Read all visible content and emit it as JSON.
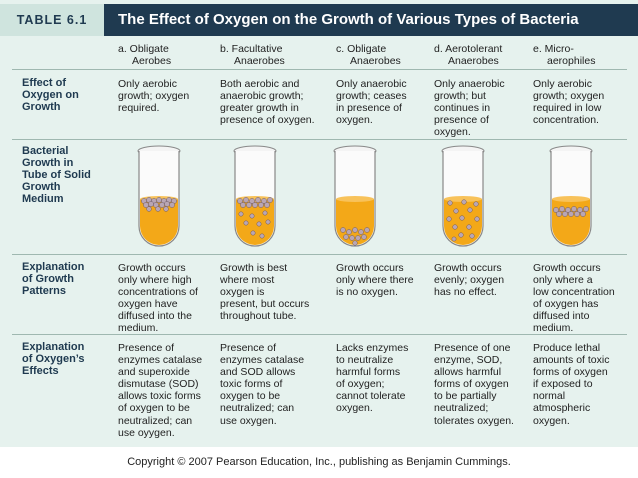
{
  "table_label": "TABLE 6.1",
  "title": "The Effect of Oxygen on the Growth of Various Types of Bacteria",
  "columns": [
    {
      "line1": "a.  Obligate",
      "line2": "Aerobes"
    },
    {
      "line1": "b.  Facultative",
      "line2": "Anaerobes"
    },
    {
      "line1": "c.  Obligate",
      "line2": "Anaerobes"
    },
    {
      "line1": "d.  Aerotolerant",
      "line2": "Anaerobes"
    },
    {
      "line1": "e.  Micro-",
      "line2": "aerophiles"
    }
  ],
  "rows": {
    "effect": {
      "label": [
        "Effect of",
        "Oxygen on",
        "Growth"
      ],
      "cells": [
        [
          "Only aerobic",
          "growth; oxygen",
          "required."
        ],
        [
          "Both aerobic and",
          "anaerobic growth;",
          "greater growth in",
          "presence of oxygen."
        ],
        [
          "Only anaerobic",
          "growth; ceases",
          "in presence of",
          "oxygen."
        ],
        [
          "Only anaerobic",
          "growth; but",
          "continues in",
          "presence of",
          "oxygen."
        ],
        [
          "Only aerobic",
          "growth; oxygen",
          "required in low",
          "concentration."
        ]
      ]
    },
    "tube": {
      "label": [
        "Bacterial",
        "Growth in",
        "Tube of Solid",
        "Growth",
        "Medium"
      ]
    },
    "explanation": {
      "label": [
        "Explanation",
        "of Growth",
        "Patterns"
      ],
      "cells": [
        [
          "Growth occurs",
          "only where high",
          "concentrations of",
          "oxygen have",
          "diffused into the",
          "medium."
        ],
        [
          "Growth is best",
          "where most",
          "oxygen is",
          "present, but occurs",
          "throughout tube."
        ],
        [
          "Growth occurs",
          "only where there",
          "is no oxygen."
        ],
        [
          "Growth occurs",
          "evenly; oxygen",
          "has no effect."
        ],
        [
          "Growth occurs",
          "only where a",
          "low concentration",
          "of oxygen has",
          "diffused into",
          "medium."
        ]
      ]
    },
    "oxygen_effects": {
      "label": [
        "Explanation",
        "of Oxygen’s",
        "Effects"
      ],
      "cells": [
        [
          "Presence of",
          "enzymes catalase",
          "and superoxide",
          "dismutase (SOD)",
          "allows toxic forms",
          "of oxygen to be",
          "neutralized; can",
          "use oyygen."
        ],
        [
          "Presence of",
          "enzymes catalase",
          "and SOD allows",
          "toxic forms of",
          "oxygen to be",
          "neutralized; can",
          "use oxygen."
        ],
        [
          "Lacks enzymes",
          "to neutralize",
          "harmful forms",
          "of oxygen;",
          "cannot tolerate",
          "oxygen."
        ],
        [
          "Presence of one",
          "enzyme, SOD,",
          "allows harmful",
          "forms of oxygen",
          "to be partially",
          "neutralized;",
          "tolerates oxygen."
        ],
        [
          "Produce lethal",
          "amounts of toxic",
          "forms of oxygen",
          "if exposed to",
          "normal",
          "atmospheric",
          "oxygen."
        ]
      ]
    }
  },
  "colors": {
    "title_bar": "#1f3a50",
    "background": "#e6f2ee",
    "medium": "#f3a818",
    "colony": "#b9a6b4"
  },
  "copyright": "Copyright © 2007 Pearson Education, Inc., publishing as Benjamin Cummings."
}
